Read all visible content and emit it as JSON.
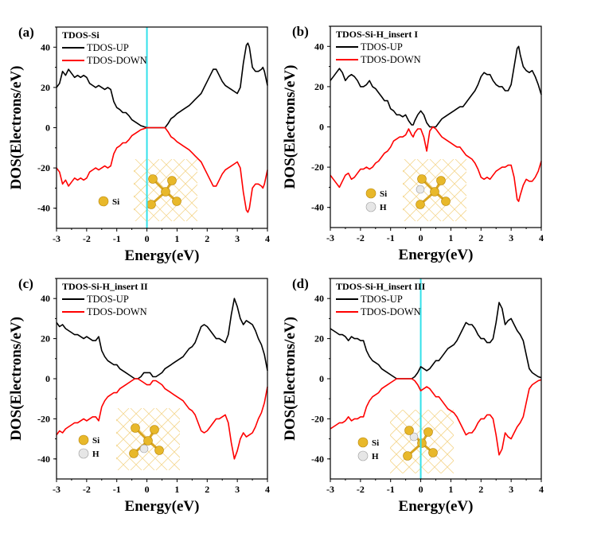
{
  "figure": {
    "ylabel": "DOS(Electrons/eV)",
    "xlabel": "Energy(eV)"
  },
  "chart_data": [
    {
      "type": "line",
      "panel": "(a)",
      "title": "TDOS-Si",
      "xlabel": "Energy(eV)",
      "ylabel": "DOS(Electrons/eV)",
      "xlim": [
        -3,
        4
      ],
      "ylim": [
        -50,
        50
      ],
      "xticks": [
        "-3",
        "-2",
        "-1",
        "0",
        "1",
        "2",
        "3",
        "4"
      ],
      "yticks": [
        "-40",
        "-20",
        "0",
        "20",
        "40"
      ],
      "fermi_line": {
        "x": 0,
        "color": "#33e0ea"
      },
      "legend": {
        "placement": "top-left",
        "entries": [
          "TDOS-UP",
          "TDOS-DOWN"
        ]
      },
      "inset_atoms": [
        "Si"
      ],
      "x": [
        -3,
        -2.9,
        -2.8,
        -2.7,
        -2.6,
        -2.5,
        -2.4,
        -2.3,
        -2.2,
        -2.1,
        -2,
        -1.9,
        -1.8,
        -1.7,
        -1.6,
        -1.5,
        -1.4,
        -1.3,
        -1.2,
        -1.1,
        -1,
        -0.9,
        -0.8,
        -0.7,
        -0.6,
        -0.5,
        -0.4,
        -0.3,
        -0.2,
        -0.1,
        0,
        0.1,
        0.2,
        0.3,
        0.4,
        0.5,
        0.6,
        0.7,
        0.8,
        0.9,
        1,
        1.1,
        1.2,
        1.3,
        1.4,
        1.5,
        1.6,
        1.7,
        1.8,
        1.9,
        2,
        2.1,
        2.2,
        2.3,
        2.4,
        2.5,
        2.6,
        2.7,
        2.8,
        2.9,
        3,
        3.1,
        3.2,
        3.3,
        3.35,
        3.4,
        3.5,
        3.6,
        3.7,
        3.8,
        3.85,
        3.9,
        4
      ],
      "series": [
        {
          "name": "TDOS-UP",
          "color": "#000000",
          "values": [
            20,
            22,
            28,
            26,
            29,
            27,
            25,
            26,
            25,
            26,
            25,
            22,
            21,
            20,
            21,
            20,
            19,
            20,
            19,
            13,
            10,
            9,
            7.5,
            7.5,
            6,
            4,
            3,
            2,
            1,
            0.5,
            0,
            0,
            0,
            0,
            0,
            0,
            0,
            2,
            4.5,
            5.5,
            7,
            8,
            9,
            10,
            11,
            12.5,
            14,
            15.5,
            17,
            20,
            23,
            26,
            29,
            29,
            26,
            23,
            21,
            20,
            19,
            18,
            17,
            20,
            32,
            41,
            42,
            40,
            30,
            28,
            28,
            29,
            30,
            28,
            21
          ]
        },
        {
          "name": "TDOS-DOWN",
          "color": "#ff0000",
          "values": [
            -20,
            -22,
            -28,
            -26,
            -29,
            -27,
            -25,
            -26,
            -25,
            -26,
            -25,
            -22,
            -21,
            -20,
            -21,
            -20,
            -19,
            -20,
            -19,
            -13,
            -10,
            -9,
            -7.5,
            -7.5,
            -6,
            -4,
            -3,
            -2,
            -1,
            -0.5,
            0,
            0,
            0,
            0,
            0,
            0,
            0,
            -2,
            -4.5,
            -5.5,
            -7,
            -8,
            -9,
            -10,
            -11,
            -12.5,
            -14,
            -15.5,
            -17,
            -20,
            -23,
            -26,
            -29,
            -29,
            -26,
            -23,
            -21,
            -20,
            -19,
            -18,
            -17,
            -20,
            -32,
            -41,
            -42,
            -40,
            -30,
            -28,
            -28,
            -29,
            -30,
            -28,
            -21
          ]
        }
      ]
    },
    {
      "type": "line",
      "panel": "(b)",
      "title": "TDOS-Si-H_insert I",
      "xlabel": "Energy(eV)",
      "ylabel": "DOS(Electrons/eV)",
      "xlim": [
        -3,
        4
      ],
      "ylim": [
        -50,
        50
      ],
      "xticks": [
        "-3",
        "-2",
        "-1",
        "0",
        "1",
        "2",
        "3",
        "4"
      ],
      "yticks": [
        "-40",
        "-20",
        "0",
        "20",
        "40"
      ],
      "legend": {
        "placement": "top-left",
        "entries": [
          "TDOS-UP",
          "TDOS-DOWN"
        ]
      },
      "inset_atoms": [
        "Si",
        "H"
      ],
      "x": [
        -3,
        -2.9,
        -2.8,
        -2.7,
        -2.6,
        -2.5,
        -2.4,
        -2.3,
        -2.2,
        -2.1,
        -2,
        -1.9,
        -1.8,
        -1.7,
        -1.6,
        -1.5,
        -1.4,
        -1.3,
        -1.2,
        -1.1,
        -1,
        -0.9,
        -0.8,
        -0.7,
        -0.6,
        -0.5,
        -0.4,
        -0.3,
        -0.25,
        -0.2,
        -0.1,
        0,
        0.1,
        0.2,
        0.3,
        0.4,
        0.5,
        0.6,
        0.7,
        0.8,
        0.9,
        1,
        1.1,
        1.2,
        1.3,
        1.4,
        1.5,
        1.6,
        1.7,
        1.8,
        1.9,
        2,
        2.1,
        2.2,
        2.3,
        2.4,
        2.5,
        2.6,
        2.7,
        2.8,
        2.9,
        3,
        3.1,
        3.2,
        3.25,
        3.3,
        3.4,
        3.5,
        3.6,
        3.7,
        3.8,
        3.9,
        4
      ],
      "series": [
        {
          "name": "TDOS-UP",
          "color": "#000000",
          "values": [
            23,
            25,
            27,
            29,
            27,
            23,
            25,
            26,
            25,
            23,
            20,
            20,
            21,
            23,
            20,
            19,
            17,
            15,
            13,
            13,
            9,
            8,
            6,
            6,
            5,
            6,
            3,
            1,
            1,
            3,
            6,
            8,
            6,
            2,
            0,
            0,
            0,
            2,
            4,
            5,
            6,
            7,
            8,
            9,
            10,
            10,
            12,
            14,
            16,
            18,
            21,
            25,
            27,
            26,
            26,
            23,
            21,
            20,
            20,
            18,
            18,
            21,
            30,
            39,
            40,
            36,
            30,
            28,
            27,
            28,
            25,
            21,
            16
          ]
        },
        {
          "name": "TDOS-DOWN",
          "color": "#ff0000",
          "values": [
            -24,
            -26,
            -28,
            -30,
            -27,
            -24,
            -23,
            -26,
            -25,
            -23,
            -21,
            -21,
            -20,
            -21,
            -20,
            -18,
            -17,
            -15,
            -13,
            -12,
            -10,
            -7,
            -6,
            -5,
            -5,
            -4,
            -1,
            -4,
            -5,
            -3,
            -1,
            -1,
            -5,
            -12,
            -2,
            0,
            -1,
            -3,
            -5,
            -6,
            -7,
            -8,
            -9,
            -10,
            -10,
            -12,
            -14,
            -15,
            -16,
            -18,
            -21,
            -25,
            -26,
            -25,
            -26,
            -24,
            -22,
            -21,
            -20,
            -20,
            -19,
            -19,
            -25,
            -36,
            -37,
            -34,
            -29,
            -26,
            -27,
            -27,
            -25,
            -22,
            -17
          ]
        }
      ]
    },
    {
      "type": "line",
      "panel": "(c)",
      "title": "TDOS-Si-H_insert II",
      "xlabel": "Energy(eV)",
      "ylabel": "DOS(Electrons/eV)",
      "xlim": [
        -3,
        4
      ],
      "ylim": [
        -50,
        50
      ],
      "xticks": [
        "-3",
        "-2",
        "-1",
        "0",
        "1",
        "2",
        "3",
        "4"
      ],
      "yticks": [
        "-40",
        "-20",
        "0",
        "20",
        "40"
      ],
      "legend": {
        "placement": "top-left",
        "entries": [
          "TDOS-UP",
          "TDOS-DOWN"
        ]
      },
      "inset_atoms": [
        "Si",
        "H"
      ],
      "x": [
        -3,
        -2.9,
        -2.8,
        -2.7,
        -2.6,
        -2.5,
        -2.4,
        -2.3,
        -2.2,
        -2.1,
        -2,
        -1.9,
        -1.8,
        -1.7,
        -1.6,
        -1.5,
        -1.4,
        -1.3,
        -1.2,
        -1.1,
        -1,
        -0.9,
        -0.8,
        -0.7,
        -0.6,
        -0.5,
        -0.4,
        -0.3,
        -0.2,
        -0.1,
        0,
        0.1,
        0.2,
        0.3,
        0.4,
        0.5,
        0.6,
        0.7,
        0.8,
        0.9,
        1,
        1.1,
        1.2,
        1.3,
        1.4,
        1.5,
        1.6,
        1.7,
        1.8,
        1.9,
        2,
        2.1,
        2.2,
        2.3,
        2.4,
        2.5,
        2.6,
        2.7,
        2.8,
        2.9,
        3,
        3.1,
        3.2,
        3.3,
        3.4,
        3.5,
        3.6,
        3.7,
        3.8,
        3.9,
        4
      ],
      "series": [
        {
          "name": "TDOS-UP",
          "color": "#000000",
          "values": [
            28,
            26,
            27,
            25,
            24,
            23,
            22,
            22,
            21,
            20,
            21,
            20,
            19,
            19,
            21,
            14,
            11,
            9,
            8,
            7,
            7,
            5,
            4,
            3,
            2,
            1,
            0,
            0,
            1,
            3,
            3,
            3,
            1,
            1,
            2,
            3,
            5,
            6,
            7,
            8,
            9,
            10,
            11,
            13,
            15,
            16,
            18,
            22,
            26,
            27,
            26,
            24,
            22,
            20,
            20,
            19,
            18,
            22,
            32,
            40,
            36,
            30,
            27,
            29,
            28,
            27,
            24,
            20,
            17,
            12,
            4
          ]
        },
        {
          "name": "TDOS-DOWN",
          "color": "#ff0000",
          "values": [
            -28,
            -26,
            -27,
            -25,
            -24,
            -23,
            -22,
            -22,
            -21,
            -20,
            -21,
            -20,
            -19,
            -19,
            -21,
            -14,
            -11,
            -9,
            -8,
            -7,
            -7,
            -5,
            -4,
            -3,
            -2,
            -1,
            0,
            0,
            -1,
            -2,
            -3,
            -3,
            -1,
            -1,
            -2,
            -3,
            -5,
            -6,
            -7,
            -8,
            -9,
            -10,
            -11,
            -13,
            -15,
            -16,
            -18,
            -22,
            -26,
            -27,
            -26,
            -24,
            -22,
            -20,
            -20,
            -19,
            -18,
            -22,
            -32,
            -40,
            -36,
            -30,
            -27,
            -29,
            -28,
            -27,
            -24,
            -20,
            -17,
            -12,
            -4
          ]
        }
      ]
    },
    {
      "type": "line",
      "panel": "(d)",
      "title": "TDOS-Si-H_insert III",
      "xlabel": "Energy(eV)",
      "ylabel": "DOS(Electrons/eV)",
      "xlim": [
        -3,
        4
      ],
      "ylim": [
        -50,
        50
      ],
      "xticks": [
        "-3",
        "-2",
        "-1",
        "0",
        "1",
        "2",
        "3",
        "4"
      ],
      "yticks": [
        "-40",
        "-20",
        "0",
        "20",
        "40"
      ],
      "fermi_line": {
        "x": 0,
        "color": "#33e0ea"
      },
      "legend": {
        "placement": "top-left",
        "entries": [
          "TDOS-UP",
          "TDOS-DOWN"
        ]
      },
      "inset_atoms": [
        "Si",
        "H"
      ],
      "x": [
        -3,
        -2.9,
        -2.8,
        -2.7,
        -2.6,
        -2.5,
        -2.4,
        -2.3,
        -2.2,
        -2.1,
        -2,
        -1.9,
        -1.8,
        -1.7,
        -1.6,
        -1.5,
        -1.4,
        -1.3,
        -1.2,
        -1.1,
        -1,
        -0.9,
        -0.8,
        -0.7,
        -0.6,
        -0.5,
        -0.4,
        -0.3,
        -0.2,
        -0.1,
        0,
        0.1,
        0.2,
        0.3,
        0.4,
        0.5,
        0.6,
        0.7,
        0.8,
        0.9,
        1,
        1.1,
        1.2,
        1.3,
        1.4,
        1.5,
        1.6,
        1.7,
        1.8,
        1.9,
        2,
        2.1,
        2.2,
        2.3,
        2.4,
        2.5,
        2.6,
        2.7,
        2.8,
        2.9,
        3,
        3.1,
        3.2,
        3.3,
        3.4,
        3.5,
        3.6,
        3.7,
        3.8,
        3.9,
        4
      ],
      "series": [
        {
          "name": "TDOS-UP",
          "color": "#000000",
          "values": [
            25,
            24,
            23,
            22,
            22,
            21,
            19,
            21,
            20,
            20,
            19,
            19,
            14,
            11,
            9,
            8,
            7,
            5,
            4,
            3,
            2,
            1,
            0,
            0,
            0,
            0,
            0,
            0,
            1,
            3,
            6,
            5,
            4,
            5,
            7,
            9,
            9,
            11,
            13,
            15,
            16,
            17,
            19,
            22,
            25,
            28,
            27,
            27,
            25,
            22,
            20,
            20,
            18,
            18,
            20,
            28,
            38,
            35,
            27,
            29,
            30,
            27,
            24,
            22,
            19,
            12,
            5,
            3,
            2,
            1,
            0.5
          ]
        },
        {
          "name": "TDOS-DOWN",
          "color": "#ff0000",
          "values": [
            -25,
            -24,
            -23,
            -22,
            -22,
            -21,
            -19,
            -21,
            -20,
            -20,
            -19,
            -19,
            -14,
            -11,
            -9,
            -8,
            -7,
            -5,
            -4,
            -3,
            -2,
            -1,
            0,
            0,
            0,
            0,
            0,
            0,
            -1,
            -3,
            -6,
            -5,
            -4,
            -5,
            -7,
            -9,
            -9,
            -11,
            -13,
            -15,
            -16,
            -17,
            -19,
            -22,
            -25,
            -28,
            -27,
            -27,
            -25,
            -22,
            -20,
            -20,
            -18,
            -18,
            -20,
            -28,
            -38,
            -35,
            -27,
            -29,
            -30,
            -27,
            -24,
            -22,
            -19,
            -12,
            -5,
            -3,
            -2,
            -1,
            -0.5
          ]
        }
      ]
    }
  ]
}
